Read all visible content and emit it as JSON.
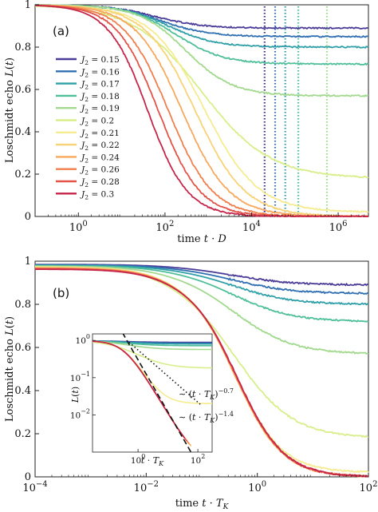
{
  "chart_data": [
    {
      "panel": "(a)",
      "type": "line",
      "xscale": "log",
      "xlabel": "time t · D",
      "ylabel": "Loschmidt echo L(t)",
      "xlim": [
        0.1,
        5000000
      ],
      "ylim": [
        0,
        1
      ],
      "xticks": [
        1,
        100,
        10000,
        1000000
      ],
      "xtick_labels": [
        "10^0",
        "10^2",
        "10^4",
        "10^6"
      ],
      "yticks": [
        0,
        0.2,
        0.4,
        0.6,
        0.8,
        1
      ],
      "ytick_labels": [
        "0",
        "0.2",
        "0.4",
        "0.6",
        "0.8",
        "1"
      ],
      "legend_position": "left",
      "series": [
        {
          "name": "J_2 = 0.15",
          "color": "#4b3b98",
          "plateau": 0.89,
          "tau": 60,
          "exponent": 0.8
        },
        {
          "name": "J_2 = 0.16",
          "color": "#2f6fb1",
          "plateau": 0.85,
          "tau": 80,
          "exponent": 0.8
        },
        {
          "name": "J_2 = 0.17",
          "color": "#2f9fa8",
          "plateau": 0.8,
          "tau": 120,
          "exponent": 0.8
        },
        {
          "name": "J_2 = 0.18",
          "color": "#4fbf9a",
          "plateau": 0.72,
          "tau": 180,
          "exponent": 0.8
        },
        {
          "name": "J_2 = 0.19",
          "color": "#a2d98e",
          "plateau": 0.57,
          "tau": 300,
          "exponent": 0.8
        },
        {
          "name": "J_2 = 0.2",
          "color": "#d8ee8a",
          "plateau": 0.18,
          "tau": 700,
          "exponent": 0.55
        },
        {
          "name": "J_2 = 0.21",
          "color": "#f5ec90",
          "plateau": 0.02,
          "tau": 800,
          "exponent": 0.7
        },
        {
          "name": "J_2 = 0.22",
          "color": "#f8d277",
          "plateau": 0.0,
          "tau": 500,
          "exponent": 0.75
        },
        {
          "name": "J_2 = 0.24",
          "color": "#f7a85c",
          "plateau": 0.0,
          "tau": 250,
          "exponent": 0.8
        },
        {
          "name": "J_2 = 0.26",
          "color": "#ef7f4c",
          "plateau": 0.0,
          "tau": 120,
          "exponent": 0.85
        },
        {
          "name": "J_2 = 0.28",
          "color": "#e35348",
          "plateau": 0.0,
          "tau": 70,
          "exponent": 0.9
        },
        {
          "name": "J_2 = 0.3",
          "color": "#c6254a",
          "plateau": 0.0,
          "tau": 40,
          "exponent": 0.95
        }
      ],
      "vertical_markers": [
        {
          "x": 20000,
          "color": "#3a2f85"
        },
        {
          "x": 35000,
          "color": "#2f6fb1"
        },
        {
          "x": 60000,
          "color": "#2f9fa8"
        },
        {
          "x": 120000,
          "color": "#4fbf9a"
        },
        {
          "x": 550000,
          "color": "#a2d98e"
        }
      ]
    },
    {
      "panel": "(b)",
      "type": "line",
      "xscale": "log",
      "xlabel": "time t · T_K",
      "ylabel": "Loschmidt echo L(t)",
      "xlim": [
        0.0001,
        100
      ],
      "ylim": [
        0,
        1
      ],
      "xticks": [
        0.0001,
        0.01,
        1,
        100
      ],
      "xtick_labels": [
        "10^-4",
        "10^-2",
        "10^0",
        "10^2"
      ],
      "yticks": [
        0,
        0.2,
        0.4,
        0.6,
        0.8,
        1
      ],
      "ytick_labels": [
        "0",
        "0.2",
        "0.4",
        "0.6",
        "0.8",
        "1"
      ],
      "series_plateaus": [
        0.89,
        0.85,
        0.8,
        0.72,
        0.57,
        0.18,
        0.02,
        0.0,
        0.0,
        0.0,
        0.0,
        0.0
      ],
      "inset": {
        "type": "line",
        "xscale": "log",
        "yscale": "log",
        "xlabel": "t · T_K",
        "ylabel": "L(t)",
        "xlim": [
          0.03,
          300
        ],
        "ylim": [
          0.001,
          1.5
        ],
        "xticks": [
          1,
          100
        ],
        "xtick_labels": [
          "10^0",
          "10^2"
        ],
        "yticks": [
          0.01,
          0.1,
          1
        ],
        "ytick_labels": [
          "10^-2",
          "10^-1",
          "10^0"
        ],
        "power_laws": [
          {
            "label": "∼ (t · T_K)^-0.7",
            "exponent": -0.7,
            "style": "dotted"
          },
          {
            "label": "∼ (t · T_K)^-1.4",
            "exponent": -1.4,
            "style": "dashed"
          }
        ]
      }
    }
  ],
  "panel_labels": {
    "a": "(a)",
    "b": "(b)"
  },
  "axis_titles": {
    "a_x": "time t · D",
    "a_y": "Loschmidt echo L(t)",
    "b_x": "time t · T_K",
    "b_y": "Loschmidt echo L(t)",
    "inset_x": "t · T_K",
    "inset_y": "L(t)"
  },
  "annotations": {
    "inset_slow": "∼ (t · T_K)^-0.7",
    "inset_fast": "∼ (t · T_K)^-1.4"
  }
}
